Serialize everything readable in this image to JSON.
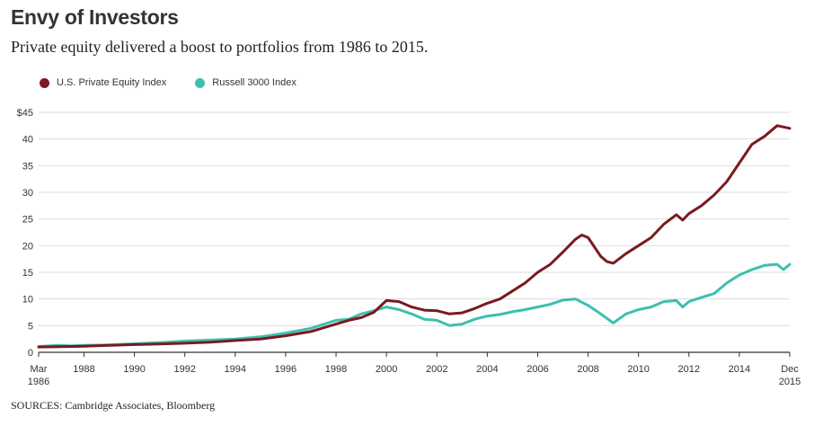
{
  "header": {
    "title": "Envy of Investors",
    "subtitle": "Private equity delivered a boost to portfolios from 1986 to 2015."
  },
  "source": "SOURCES: Cambridge Associates, Bloomberg",
  "colors": {
    "pe": "#7a1a20",
    "russell": "#3dbfae",
    "grid": "#dddddd",
    "axis": "#333333"
  },
  "chart_data": {
    "type": "line",
    "title": "Envy of Investors",
    "subtitle": "Private equity delivered a boost to portfolios from 1986 to 2015.",
    "xlabel": "",
    "ylabel": "",
    "xlim": [
      1986.2,
      2016.0
    ],
    "ylim": [
      0,
      45
    ],
    "yticks": [
      0,
      5,
      10,
      15,
      20,
      25,
      30,
      35,
      40,
      45
    ],
    "ytick_labels": [
      "0",
      "5",
      "10",
      "15",
      "20",
      "25",
      "30",
      "35",
      "40",
      "$45"
    ],
    "xticks": [
      {
        "x": 1986.2,
        "line1": "Mar",
        "line2": "1986"
      },
      {
        "x": 1988,
        "line1": "1988",
        "line2": ""
      },
      {
        "x": 1990,
        "line1": "1990",
        "line2": ""
      },
      {
        "x": 1992,
        "line1": "1992",
        "line2": ""
      },
      {
        "x": 1994,
        "line1": "1994",
        "line2": ""
      },
      {
        "x": 1996,
        "line1": "1996",
        "line2": ""
      },
      {
        "x": 1998,
        "line1": "1998",
        "line2": ""
      },
      {
        "x": 2000,
        "line1": "2000",
        "line2": ""
      },
      {
        "x": 2002,
        "line1": "2002",
        "line2": ""
      },
      {
        "x": 2004,
        "line1": "2004",
        "line2": ""
      },
      {
        "x": 2006,
        "line1": "2006",
        "line2": ""
      },
      {
        "x": 2008,
        "line1": "2008",
        "line2": ""
      },
      {
        "x": 2010,
        "line1": "2010",
        "line2": ""
      },
      {
        "x": 2012,
        "line1": "2012",
        "line2": ""
      },
      {
        "x": 2014,
        "line1": "2014",
        "line2": ""
      },
      {
        "x": 2016.0,
        "line1": "Dec",
        "line2": "2015"
      }
    ],
    "grid": true,
    "legend_position": "top-left",
    "series": [
      {
        "name": "U.S. Private Equity Index",
        "color": "#7a1a20",
        "points": [
          [
            1986.2,
            1.0
          ],
          [
            1987,
            1.05
          ],
          [
            1988,
            1.15
          ],
          [
            1989,
            1.3
          ],
          [
            1990,
            1.45
          ],
          [
            1991,
            1.55
          ],
          [
            1992,
            1.7
          ],
          [
            1993,
            1.9
          ],
          [
            1994,
            2.2
          ],
          [
            1995,
            2.5
          ],
          [
            1996,
            3.1
          ],
          [
            1997,
            3.9
          ],
          [
            1998,
            5.3
          ],
          [
            1998.5,
            6.0
          ],
          [
            1999,
            6.5
          ],
          [
            1999.5,
            7.5
          ],
          [
            2000,
            9.7
          ],
          [
            2000.5,
            9.5
          ],
          [
            2001,
            8.5
          ],
          [
            2001.5,
            7.9
          ],
          [
            2002,
            7.8
          ],
          [
            2002.5,
            7.2
          ],
          [
            2003,
            7.4
          ],
          [
            2003.5,
            8.2
          ],
          [
            2004,
            9.2
          ],
          [
            2004.5,
            10.0
          ],
          [
            2005,
            11.5
          ],
          [
            2005.5,
            13.0
          ],
          [
            2006,
            15.0
          ],
          [
            2006.5,
            16.5
          ],
          [
            2007,
            18.8
          ],
          [
            2007.5,
            21.2
          ],
          [
            2007.75,
            22.0
          ],
          [
            2008,
            21.5
          ],
          [
            2008.5,
            18.0
          ],
          [
            2008.75,
            17.0
          ],
          [
            2009,
            16.7
          ],
          [
            2009.5,
            18.5
          ],
          [
            2010,
            20.0
          ],
          [
            2010.5,
            21.5
          ],
          [
            2011,
            24.0
          ],
          [
            2011.5,
            25.8
          ],
          [
            2011.75,
            24.8
          ],
          [
            2012,
            26.0
          ],
          [
            2012.5,
            27.5
          ],
          [
            2013,
            29.5
          ],
          [
            2013.5,
            32.0
          ],
          [
            2014,
            35.5
          ],
          [
            2014.5,
            39.0
          ],
          [
            2015,
            40.5
          ],
          [
            2015.5,
            42.5
          ],
          [
            2016.0,
            42.0
          ]
        ]
      },
      {
        "name": "Russell 3000 Index",
        "color": "#3dbfae",
        "points": [
          [
            1986.2,
            1.1
          ],
          [
            1987,
            1.3
          ],
          [
            1987.5,
            1.2
          ],
          [
            1988,
            1.3
          ],
          [
            1989,
            1.4
          ],
          [
            1990,
            1.6
          ],
          [
            1991,
            1.8
          ],
          [
            1992,
            2.1
          ],
          [
            1993,
            2.3
          ],
          [
            1994,
            2.5
          ],
          [
            1995,
            2.9
          ],
          [
            1996,
            3.6
          ],
          [
            1997,
            4.5
          ],
          [
            1998,
            6.0
          ],
          [
            1998.5,
            6.2
          ],
          [
            1999,
            7.2
          ],
          [
            1999.5,
            7.8
          ],
          [
            2000,
            8.5
          ],
          [
            2000.5,
            8.0
          ],
          [
            2001,
            7.2
          ],
          [
            2001.5,
            6.2
          ],
          [
            2002,
            6.0
          ],
          [
            2002.5,
            5.0
          ],
          [
            2003,
            5.3
          ],
          [
            2003.5,
            6.2
          ],
          [
            2004,
            6.8
          ],
          [
            2004.5,
            7.1
          ],
          [
            2005,
            7.6
          ],
          [
            2005.5,
            8.0
          ],
          [
            2006,
            8.5
          ],
          [
            2006.5,
            9.0
          ],
          [
            2007,
            9.8
          ],
          [
            2007.5,
            10.0
          ],
          [
            2008,
            8.8
          ],
          [
            2008.5,
            7.2
          ],
          [
            2009,
            5.5
          ],
          [
            2009.5,
            7.2
          ],
          [
            2010,
            8.0
          ],
          [
            2010.5,
            8.5
          ],
          [
            2011,
            9.5
          ],
          [
            2011.5,
            9.7
          ],
          [
            2011.75,
            8.5
          ],
          [
            2012,
            9.5
          ],
          [
            2012.5,
            10.3
          ],
          [
            2013,
            11.0
          ],
          [
            2013.5,
            13.0
          ],
          [
            2014,
            14.5
          ],
          [
            2014.5,
            15.5
          ],
          [
            2015,
            16.3
          ],
          [
            2015.5,
            16.5
          ],
          [
            2015.75,
            15.5
          ],
          [
            2016.0,
            16.5
          ]
        ]
      }
    ]
  }
}
